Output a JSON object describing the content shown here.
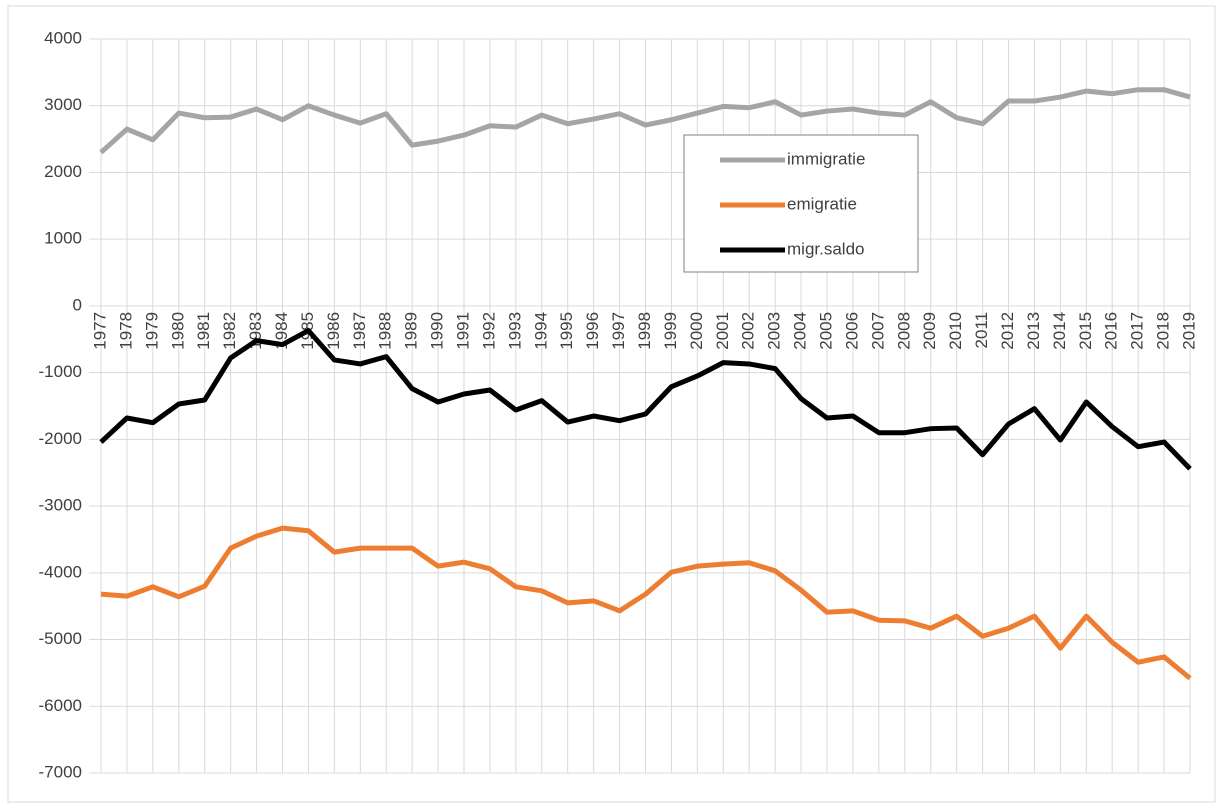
{
  "chart_data": {
    "type": "line",
    "categories": [
      "1977",
      "1978",
      "1979",
      "1980",
      "1981",
      "1982",
      "1983",
      "1984",
      "1985",
      "1986",
      "1987",
      "1988",
      "1989",
      "1990",
      "1991",
      "1992",
      "1993",
      "1994",
      "1995",
      "1996",
      "1997",
      "1998",
      "1999",
      "2000",
      "2001",
      "2002",
      "2003",
      "2004",
      "2005",
      "2006",
      "2007",
      "2008",
      "2009",
      "2010",
      "2011",
      "2012",
      "2013",
      "2014",
      "2015",
      "2016",
      "2017",
      "2018",
      "2019"
    ],
    "series": [
      {
        "name": "immigratie",
        "color": "#a5a5a5",
        "values": [
          2300,
          2650,
          2490,
          2890,
          2820,
          2830,
          2950,
          2790,
          3000,
          2860,
          2740,
          2880,
          2410,
          2470,
          2560,
          2700,
          2680,
          2860,
          2730,
          2800,
          2880,
          2710,
          2790,
          2890,
          2990,
          2970,
          3060,
          2860,
          2920,
          2950,
          2890,
          2860,
          3060,
          2820,
          2730,
          3070,
          3070,
          3130,
          3220,
          3180,
          3240,
          3240,
          3130
        ]
      },
      {
        "name": "emigratie",
        "color": "#ed7d31",
        "values": [
          -4320,
          -4350,
          -4210,
          -4360,
          -4200,
          -3630,
          -3450,
          -3330,
          -3370,
          -3690,
          -3630,
          -3630,
          -3630,
          -3900,
          -3840,
          -3940,
          -4210,
          -4270,
          -4450,
          -4420,
          -4570,
          -4320,
          -3990,
          -3900,
          -3870,
          -3850,
          -3970,
          -4260,
          -4590,
          -4570,
          -4710,
          -4720,
          -4830,
          -4650,
          -4950,
          -4830,
          -4650,
          -5130,
          -4650,
          -5040,
          -5340,
          -5260,
          -5580
        ]
      },
      {
        "name": "migr.saldo",
        "color": "#000000",
        "values": [
          -2040,
          -1680,
          -1750,
          -1470,
          -1410,
          -780,
          -520,
          -580,
          -370,
          -810,
          -870,
          -760,
          -1240,
          -1440,
          -1320,
          -1260,
          -1560,
          -1420,
          -1740,
          -1650,
          -1720,
          -1620,
          -1210,
          -1050,
          -850,
          -870,
          -940,
          -1390,
          -1680,
          -1650,
          -1900,
          -1900,
          -1840,
          -1830,
          -2230,
          -1770,
          -1540,
          -2010,
          -1440,
          -1810,
          -2110,
          -2040,
          -2440
        ]
      }
    ],
    "ylim": [
      -7000,
      4000
    ],
    "yticks": [
      -7000,
      -6000,
      -5000,
      -4000,
      -3000,
      -2000,
      -1000,
      0,
      1000,
      2000,
      3000,
      4000
    ],
    "grid": true
  }
}
